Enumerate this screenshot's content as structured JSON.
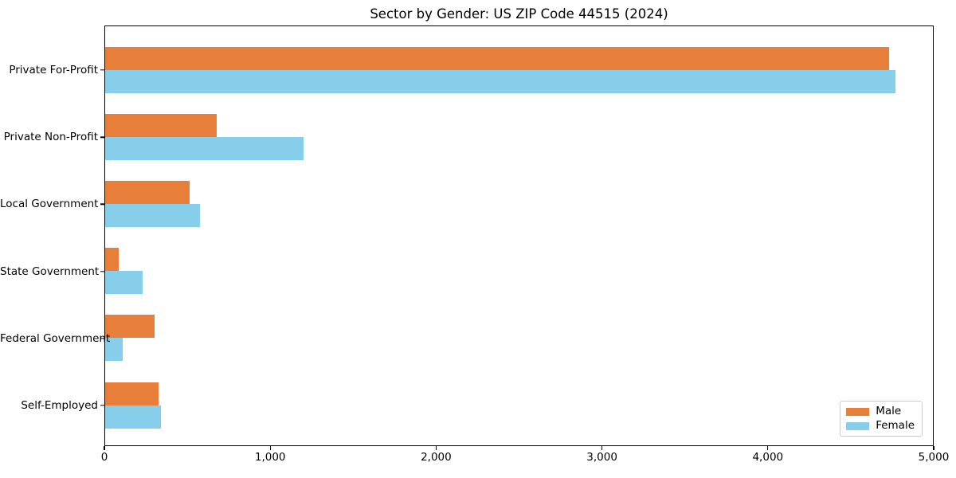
{
  "chart_data": {
    "type": "bar",
    "orientation": "horizontal",
    "title": "Sector by Gender: US ZIP Code 44515 (2024)",
    "categories": [
      "Private For-Profit",
      "Private Non-Profit",
      "Local Government",
      "State Government",
      "Federal Government",
      "Self-Employed"
    ],
    "series": [
      {
        "name": "Male",
        "color": "#e77e3a",
        "values": [
          4726,
          672,
          509,
          80,
          298,
          322
        ]
      },
      {
        "name": "Female",
        "color": "#87ceeb",
        "values": [
          4765,
          1196,
          572,
          224,
          106,
          336
        ]
      }
    ],
    "xlabel": "",
    "ylabel": "",
    "xlim": [
      0,
      5000
    ],
    "xticks": [
      0,
      1000,
      2000,
      3000,
      4000,
      5000
    ],
    "xtick_labels": [
      "0",
      "1,000",
      "2,000",
      "3,000",
      "4,000",
      "5,000"
    ],
    "grid": false,
    "legend": {
      "position": "lower right",
      "entries": [
        "Male",
        "Female"
      ]
    }
  }
}
